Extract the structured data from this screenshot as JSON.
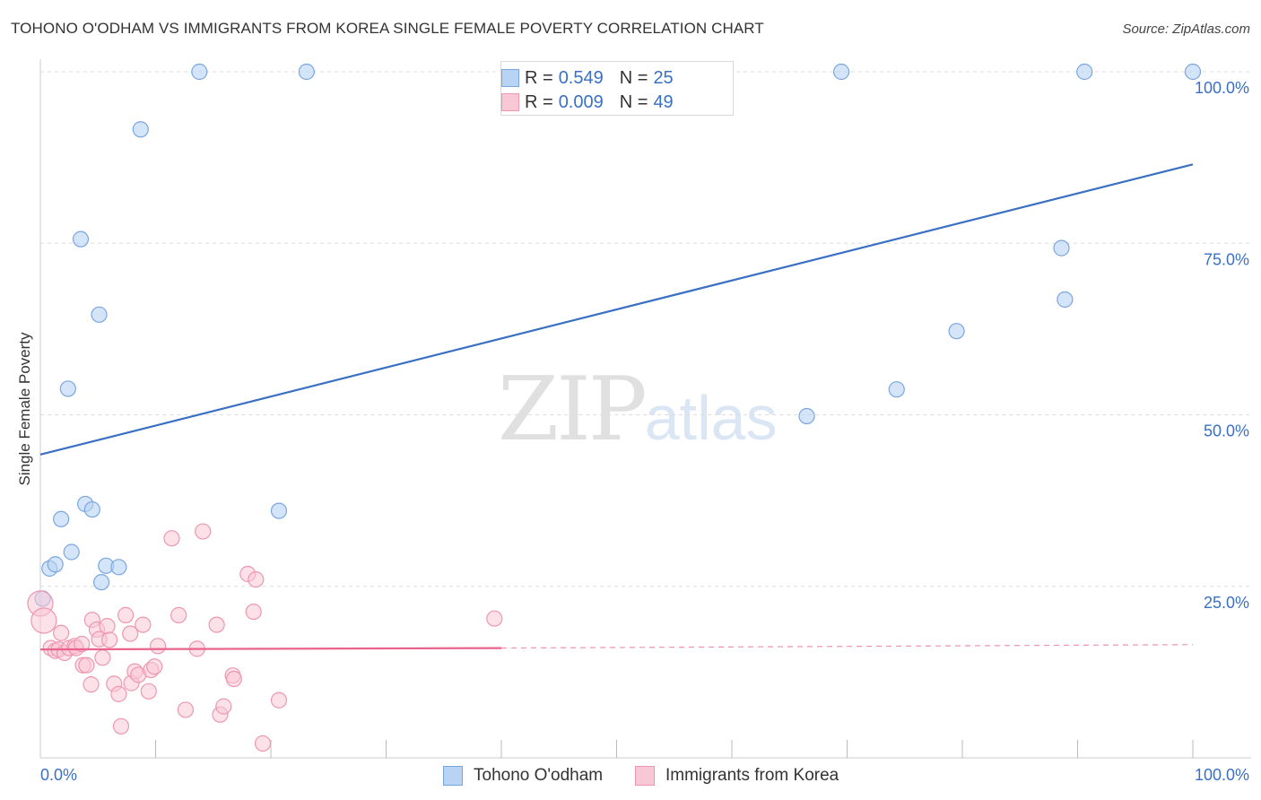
{
  "title": "TOHONO O'ODHAM VS IMMIGRANTS FROM KOREA SINGLE FEMALE POVERTY CORRELATION CHART",
  "source": "Source: ZipAtlas.com",
  "watermark": {
    "zip": "ZIP",
    "atlas": "atlas"
  },
  "colors": {
    "blue": "#3a70c4",
    "blue_fill": "#b9d3f5",
    "pink": "#e8648c",
    "pink_fill": "#f9c8d6",
    "grid": "#dddddd"
  },
  "legend": {
    "r_label": "R =",
    "n_label": "N =",
    "series": [
      {
        "name": "Tohono O'odham",
        "r": "0.549",
        "n": "25"
      },
      {
        "name": "Immigrants from Korea",
        "r": "0.009",
        "n": "49"
      }
    ]
  },
  "chart_data": {
    "type": "scatter",
    "title": "TOHONO O'ODHAM VS IMMIGRANTS FROM KOREA SINGLE FEMALE POVERTY CORRELATION CHART",
    "xlabel": "",
    "ylabel": "Single Female Poverty",
    "xlim": [
      0,
      100
    ],
    "ylim": [
      0,
      100
    ],
    "x_tick_labels": [
      "0.0%",
      "100.0%"
    ],
    "y_tick_labels": [
      {
        "value": 25,
        "label": "25.0%"
      },
      {
        "value": 50,
        "label": "50.0%"
      },
      {
        "value": 75,
        "label": "75.0%"
      },
      {
        "value": 100,
        "label": "100.0%"
      }
    ],
    "series": [
      {
        "name": "Tohono O'odham",
        "color": "blue",
        "points": [
          [
            0.2,
            23.2
          ],
          [
            0.8,
            27.6
          ],
          [
            1.3,
            28.2
          ],
          [
            1.8,
            34.8
          ],
          [
            2.4,
            53.8
          ],
          [
            2.7,
            30.0
          ],
          [
            3.5,
            75.6
          ],
          [
            3.9,
            37.0
          ],
          [
            4.5,
            36.2
          ],
          [
            5.1,
            64.6
          ],
          [
            5.3,
            25.6
          ],
          [
            5.7,
            28.0
          ],
          [
            6.8,
            27.8
          ],
          [
            8.7,
            91.6
          ],
          [
            13.8,
            100.0
          ],
          [
            20.7,
            36.0
          ],
          [
            23.1,
            100.0
          ],
          [
            66.5,
            49.8
          ],
          [
            69.5,
            100.0
          ],
          [
            74.3,
            53.7
          ],
          [
            79.5,
            62.2
          ],
          [
            88.6,
            74.3
          ],
          [
            88.9,
            66.8
          ],
          [
            90.6,
            100.0
          ],
          [
            100.0,
            100.0
          ]
        ],
        "trend": {
          "x": [
            0,
            100
          ],
          "y": [
            44.2,
            86.5
          ],
          "style": "solid"
        }
      },
      {
        "name": "Immigrants from Korea",
        "color": "pink",
        "points": [
          [
            0.0,
            22.5
          ],
          [
            0.3,
            20.0
          ],
          [
            0.9,
            16.0
          ],
          [
            1.3,
            15.6
          ],
          [
            1.6,
            15.8
          ],
          [
            1.8,
            18.2
          ],
          [
            2.1,
            15.3
          ],
          [
            2.5,
            16.0
          ],
          [
            3.0,
            16.3
          ],
          [
            3.1,
            16.0
          ],
          [
            3.6,
            16.6
          ],
          [
            3.7,
            13.5
          ],
          [
            4.0,
            13.5
          ],
          [
            4.4,
            10.7
          ],
          [
            4.5,
            20.1
          ],
          [
            4.9,
            18.7
          ],
          [
            5.1,
            17.3
          ],
          [
            5.4,
            14.6
          ],
          [
            5.8,
            19.2
          ],
          [
            6.0,
            17.2
          ],
          [
            6.4,
            10.8
          ],
          [
            6.8,
            9.3
          ],
          [
            7.0,
            4.6
          ],
          [
            7.4,
            20.8
          ],
          [
            7.8,
            18.1
          ],
          [
            7.9,
            10.9
          ],
          [
            8.2,
            12.6
          ],
          [
            8.5,
            12.1
          ],
          [
            8.9,
            19.4
          ],
          [
            9.4,
            9.7
          ],
          [
            9.6,
            12.8
          ],
          [
            9.9,
            13.3
          ],
          [
            10.2,
            16.3
          ],
          [
            11.4,
            32.0
          ],
          [
            12.0,
            20.8
          ],
          [
            12.6,
            7.0
          ],
          [
            13.6,
            15.9
          ],
          [
            14.1,
            33.0
          ],
          [
            15.3,
            19.4
          ],
          [
            15.6,
            6.3
          ],
          [
            15.9,
            7.5
          ],
          [
            16.7,
            12.0
          ],
          [
            16.8,
            11.5
          ],
          [
            18.0,
            26.8
          ],
          [
            18.5,
            21.3
          ],
          [
            18.7,
            26.0
          ],
          [
            19.3,
            2.1
          ],
          [
            20.7,
            8.4
          ],
          [
            39.4,
            20.3
          ]
        ],
        "trend": {
          "x": [
            0,
            40
          ],
          "y": [
            15.8,
            16.0
          ],
          "style": "solid",
          "extension": {
            "x": [
              40,
              100
            ],
            "y": [
              16.0,
              16.5
            ],
            "style": "dashed"
          }
        }
      }
    ],
    "grid": true,
    "legend_position": "top-center"
  }
}
